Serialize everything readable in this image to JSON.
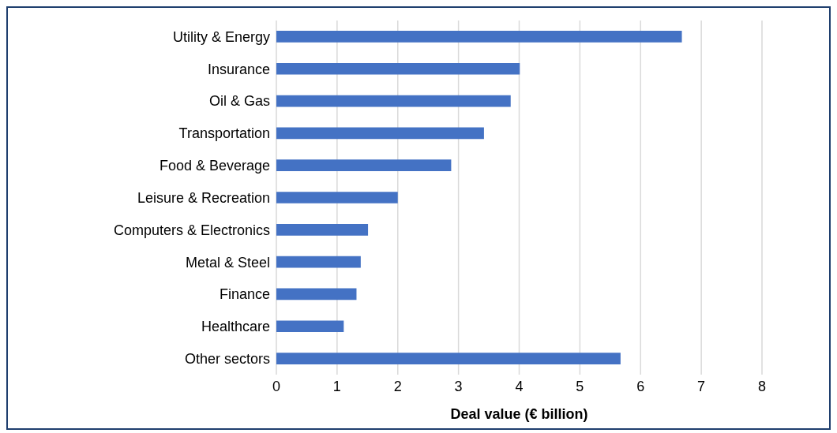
{
  "chart_data": {
    "type": "bar",
    "orientation": "horizontal",
    "xlabel": "Deal value (€ billion)",
    "categories": [
      "Utility & Energy",
      "Insurance",
      "Oil & Gas",
      "Transportation",
      "Food & Beverage",
      "Leisure & Recreation",
      "Computers & Electronics",
      "Metal & Steel",
      "Finance",
      "Healthcare",
      "Other sectors"
    ],
    "values": [
      6.68,
      4.01,
      3.86,
      3.42,
      2.88,
      2.0,
      1.51,
      1.39,
      1.32,
      1.11,
      5.67
    ],
    "color": "#4472c4",
    "xlim": [
      0,
      8
    ],
    "xticks": [
      0,
      1,
      2,
      3,
      4,
      5,
      6,
      7,
      8
    ],
    "grid": "x"
  }
}
